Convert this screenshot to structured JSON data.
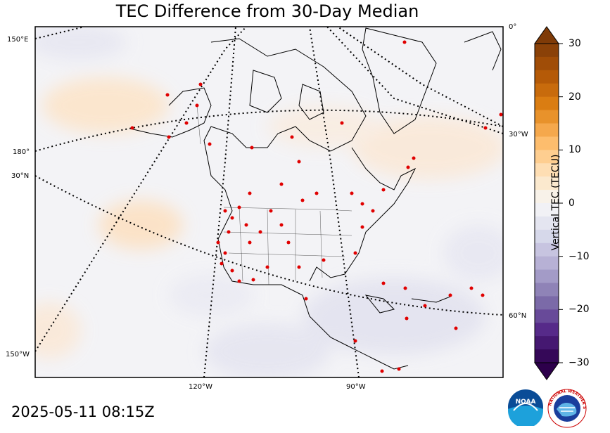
{
  "title": "TEC Difference from 30-Day Median",
  "timestamp": "2025-05-11 08:15Z",
  "colorbar": {
    "label": "Vertical TEC (TECU)",
    "ticks": [
      "30",
      "20",
      "10",
      "0",
      "−10",
      "−20",
      "−30"
    ],
    "range": [
      -30,
      30
    ]
  },
  "gridlines": {
    "lon_labels": [
      "150°E",
      "180°",
      "150°W",
      "120°W",
      "90°W",
      "0°",
      "30°W"
    ],
    "lat_labels": [
      "30°N",
      "60°N"
    ]
  },
  "logos": {
    "noaa_text": "NOAA",
    "nws_text": "NATIONAL WEATHER SERVICE"
  },
  "colors": {
    "positive": "#e07a10",
    "negative": "#6a5a9a",
    "neutral": "#f4f4f4",
    "stations": "#e00000"
  },
  "stations_shown": true
}
